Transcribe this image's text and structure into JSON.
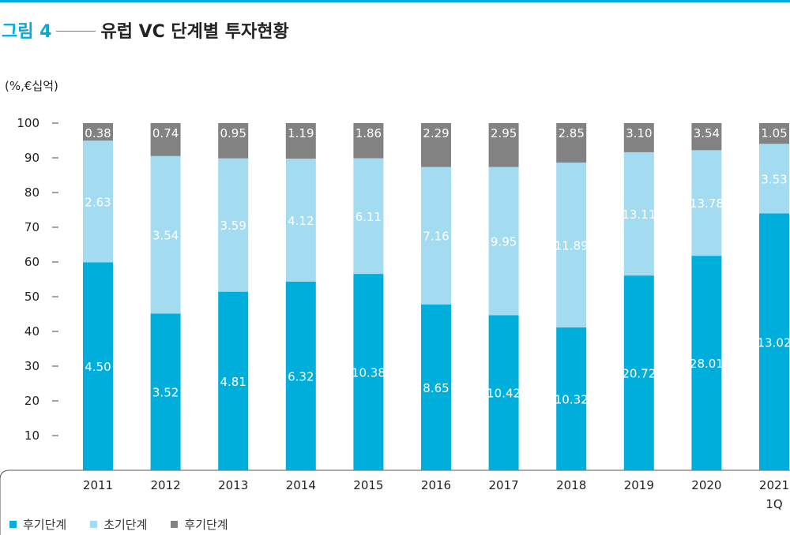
{
  "figure": {
    "number": "그림 4",
    "title": "유럽 VC 단계별 투자현황"
  },
  "unit_label": "(%,€십억)",
  "colors": {
    "accent": "#00aadc",
    "late": "#00aedc",
    "early": "#a3dbf0",
    "other": "#838283"
  },
  "legend": [
    {
      "label": "후기단계",
      "color": "#00aedc"
    },
    {
      "label": "초기단계",
      "color": "#a3dbf0"
    },
    {
      "label": "후기단계",
      "color": "#838283"
    }
  ],
  "chart_data": {
    "type": "bar",
    "stacked": true,
    "normalized_to_percent": true,
    "ylabel": "(%,€십억)",
    "ylim": [
      0,
      100
    ],
    "yticks": [
      10,
      20,
      30,
      40,
      50,
      60,
      70,
      80,
      90,
      100
    ],
    "categories": [
      "2011",
      "2012",
      "2013",
      "2014",
      "2015",
      "2016",
      "2017",
      "2018",
      "2019",
      "2020",
      "2021\n1Q"
    ],
    "series": [
      {
        "name": "후기단계",
        "color": "#00aedc",
        "values": [
          4.5,
          3.52,
          4.81,
          6.32,
          10.38,
          8.65,
          10.42,
          10.32,
          20.72,
          28.01,
          13.02
        ],
        "labels": [
          "4.50",
          "3.52",
          "4.81",
          "6.32",
          "10.38",
          "8.65",
          "10.42",
          "10.32",
          "20.72",
          "28.01",
          "13.02"
        ]
      },
      {
        "name": "초기단계",
        "color": "#a3dbf0",
        "values": [
          2.63,
          3.54,
          3.59,
          4.12,
          6.11,
          7.16,
          9.95,
          11.89,
          13.11,
          13.78,
          3.53
        ],
        "labels": [
          "2.63",
          "3.54",
          "3.59",
          "4.12",
          "6.11",
          "7.16",
          "9.95",
          "11.89",
          "13.11",
          "13.78",
          "3.53"
        ]
      },
      {
        "name": "후기단계",
        "color": "#838283",
        "values": [
          0.38,
          0.74,
          0.95,
          1.19,
          1.86,
          2.29,
          2.95,
          2.85,
          3.1,
          3.54,
          1.05
        ],
        "labels": [
          "0.38",
          "0.74",
          "0.95",
          "1.19",
          "1.86",
          "2.29",
          "2.95",
          "2.85",
          "3.10",
          "3.54",
          "1.05"
        ]
      }
    ]
  }
}
